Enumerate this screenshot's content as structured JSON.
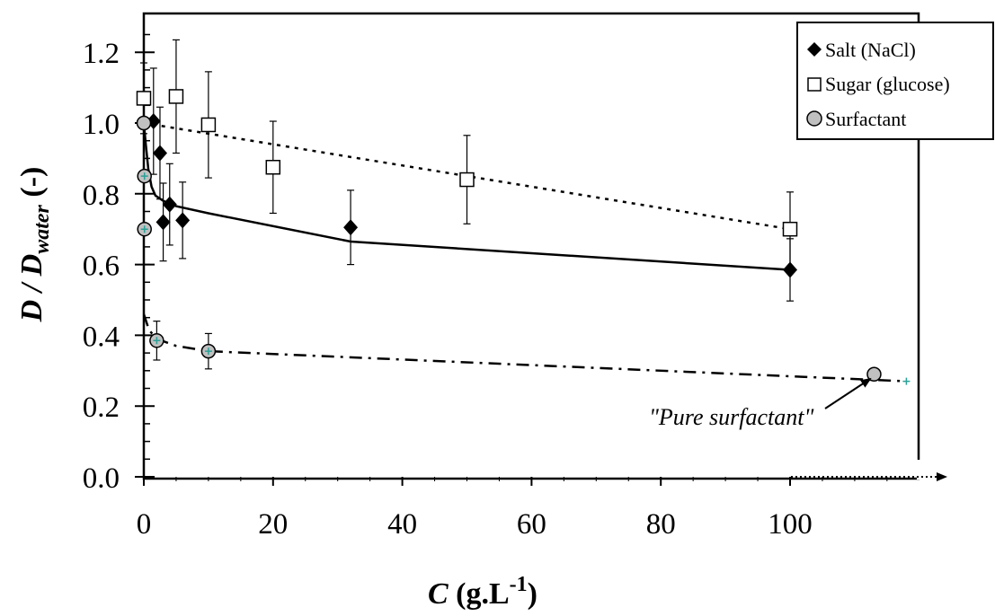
{
  "chart_data": {
    "type": "scatter",
    "ylabel": {
      "main": "D / D",
      "sub": "water",
      "suffix": " (-)"
    },
    "xlabel": {
      "main": "C",
      "unit": "  (g.L",
      "sup": "-1",
      "close": ")"
    },
    "xlim": [
      0,
      120
    ],
    "ylim": [
      0,
      1.3
    ],
    "xticks": [
      0,
      20,
      40,
      60,
      80,
      100
    ],
    "xtick_labels": [
      "0",
      "20",
      "40",
      "60",
      "80",
      "100"
    ],
    "yticks": [
      0,
      0.2,
      0.4,
      0.6,
      0.8,
      1.0,
      1.2
    ],
    "ytick_labels": [
      "0.0",
      "0.2",
      "0.4",
      "0.6",
      "0.8",
      "1.0",
      "1.2"
    ],
    "grid": false,
    "legend_position": "top-right",
    "series": [
      {
        "name": "Salt (NaCl)",
        "marker": "diamond",
        "color": "#000000",
        "points": [
          {
            "x": 0,
            "y": 1.0,
            "err": 0.0
          },
          {
            "x": 1.5,
            "y": 1.005,
            "err": 0.15
          },
          {
            "x": 2.5,
            "y": 0.915,
            "err": 0.13
          },
          {
            "x": 3,
            "y": 0.72,
            "err": 0.11
          },
          {
            "x": 4,
            "y": 0.77,
            "err": 0.115
          },
          {
            "x": 6,
            "y": 0.725,
            "err": 0.108
          },
          {
            "x": 32,
            "y": 0.705,
            "err": 0.105
          },
          {
            "x": 100,
            "y": 0.585,
            "err": 0.088
          }
        ],
        "fit": {
          "style": "solid",
          "x": [
            0,
            0.3,
            0.7,
            1.2,
            1.8,
            3,
            5,
            10,
            32,
            100
          ],
          "y": [
            1.0,
            0.94,
            0.87,
            0.82,
            0.795,
            0.78,
            0.765,
            0.745,
            0.665,
            0.585
          ]
        }
      },
      {
        "name": "Sugar (glucose)",
        "marker": "square",
        "color": "#ffffff",
        "points": [
          {
            "x": 0,
            "y": 1.07,
            "err": 0.1
          },
          {
            "x": 5,
            "y": 1.075,
            "err": 0.16
          },
          {
            "x": 10,
            "y": 0.995,
            "err": 0.15
          },
          {
            "x": 20,
            "y": 0.875,
            "err": 0.13
          },
          {
            "x": 50,
            "y": 0.84,
            "err": 0.125
          },
          {
            "x": 100,
            "y": 0.7,
            "err": 0.105
          }
        ],
        "fit": {
          "style": "dotted",
          "x": [
            0,
            100
          ],
          "y": [
            1.0,
            0.7
          ]
        }
      },
      {
        "name": "Surfactant",
        "marker": "circle",
        "color": "#c0c0c0",
        "points": [
          {
            "x": 0,
            "y": 1.0,
            "err": 0.0,
            "plus": false
          },
          {
            "x": 0.1,
            "y": 0.85,
            "err": 0.0,
            "plus": true
          },
          {
            "x": 0.1,
            "y": 0.7,
            "err": 0.0,
            "plus": true
          },
          {
            "x": 2,
            "y": 0.385,
            "err": 0.055,
            "plus": true
          },
          {
            "x": 10,
            "y": 0.355,
            "err": 0.05,
            "plus": true
          },
          {
            "x": 113,
            "y": 0.29,
            "err": 0.0,
            "plus": false
          }
        ],
        "fit": {
          "style": "dash-dot",
          "x": [
            0,
            0.8,
            2,
            5,
            10,
            118
          ],
          "y": [
            0.46,
            0.415,
            0.39,
            0.37,
            0.355,
            0.27
          ]
        }
      }
    ],
    "annotations": [
      {
        "text": "\"Pure surfactant\""
      }
    ]
  }
}
